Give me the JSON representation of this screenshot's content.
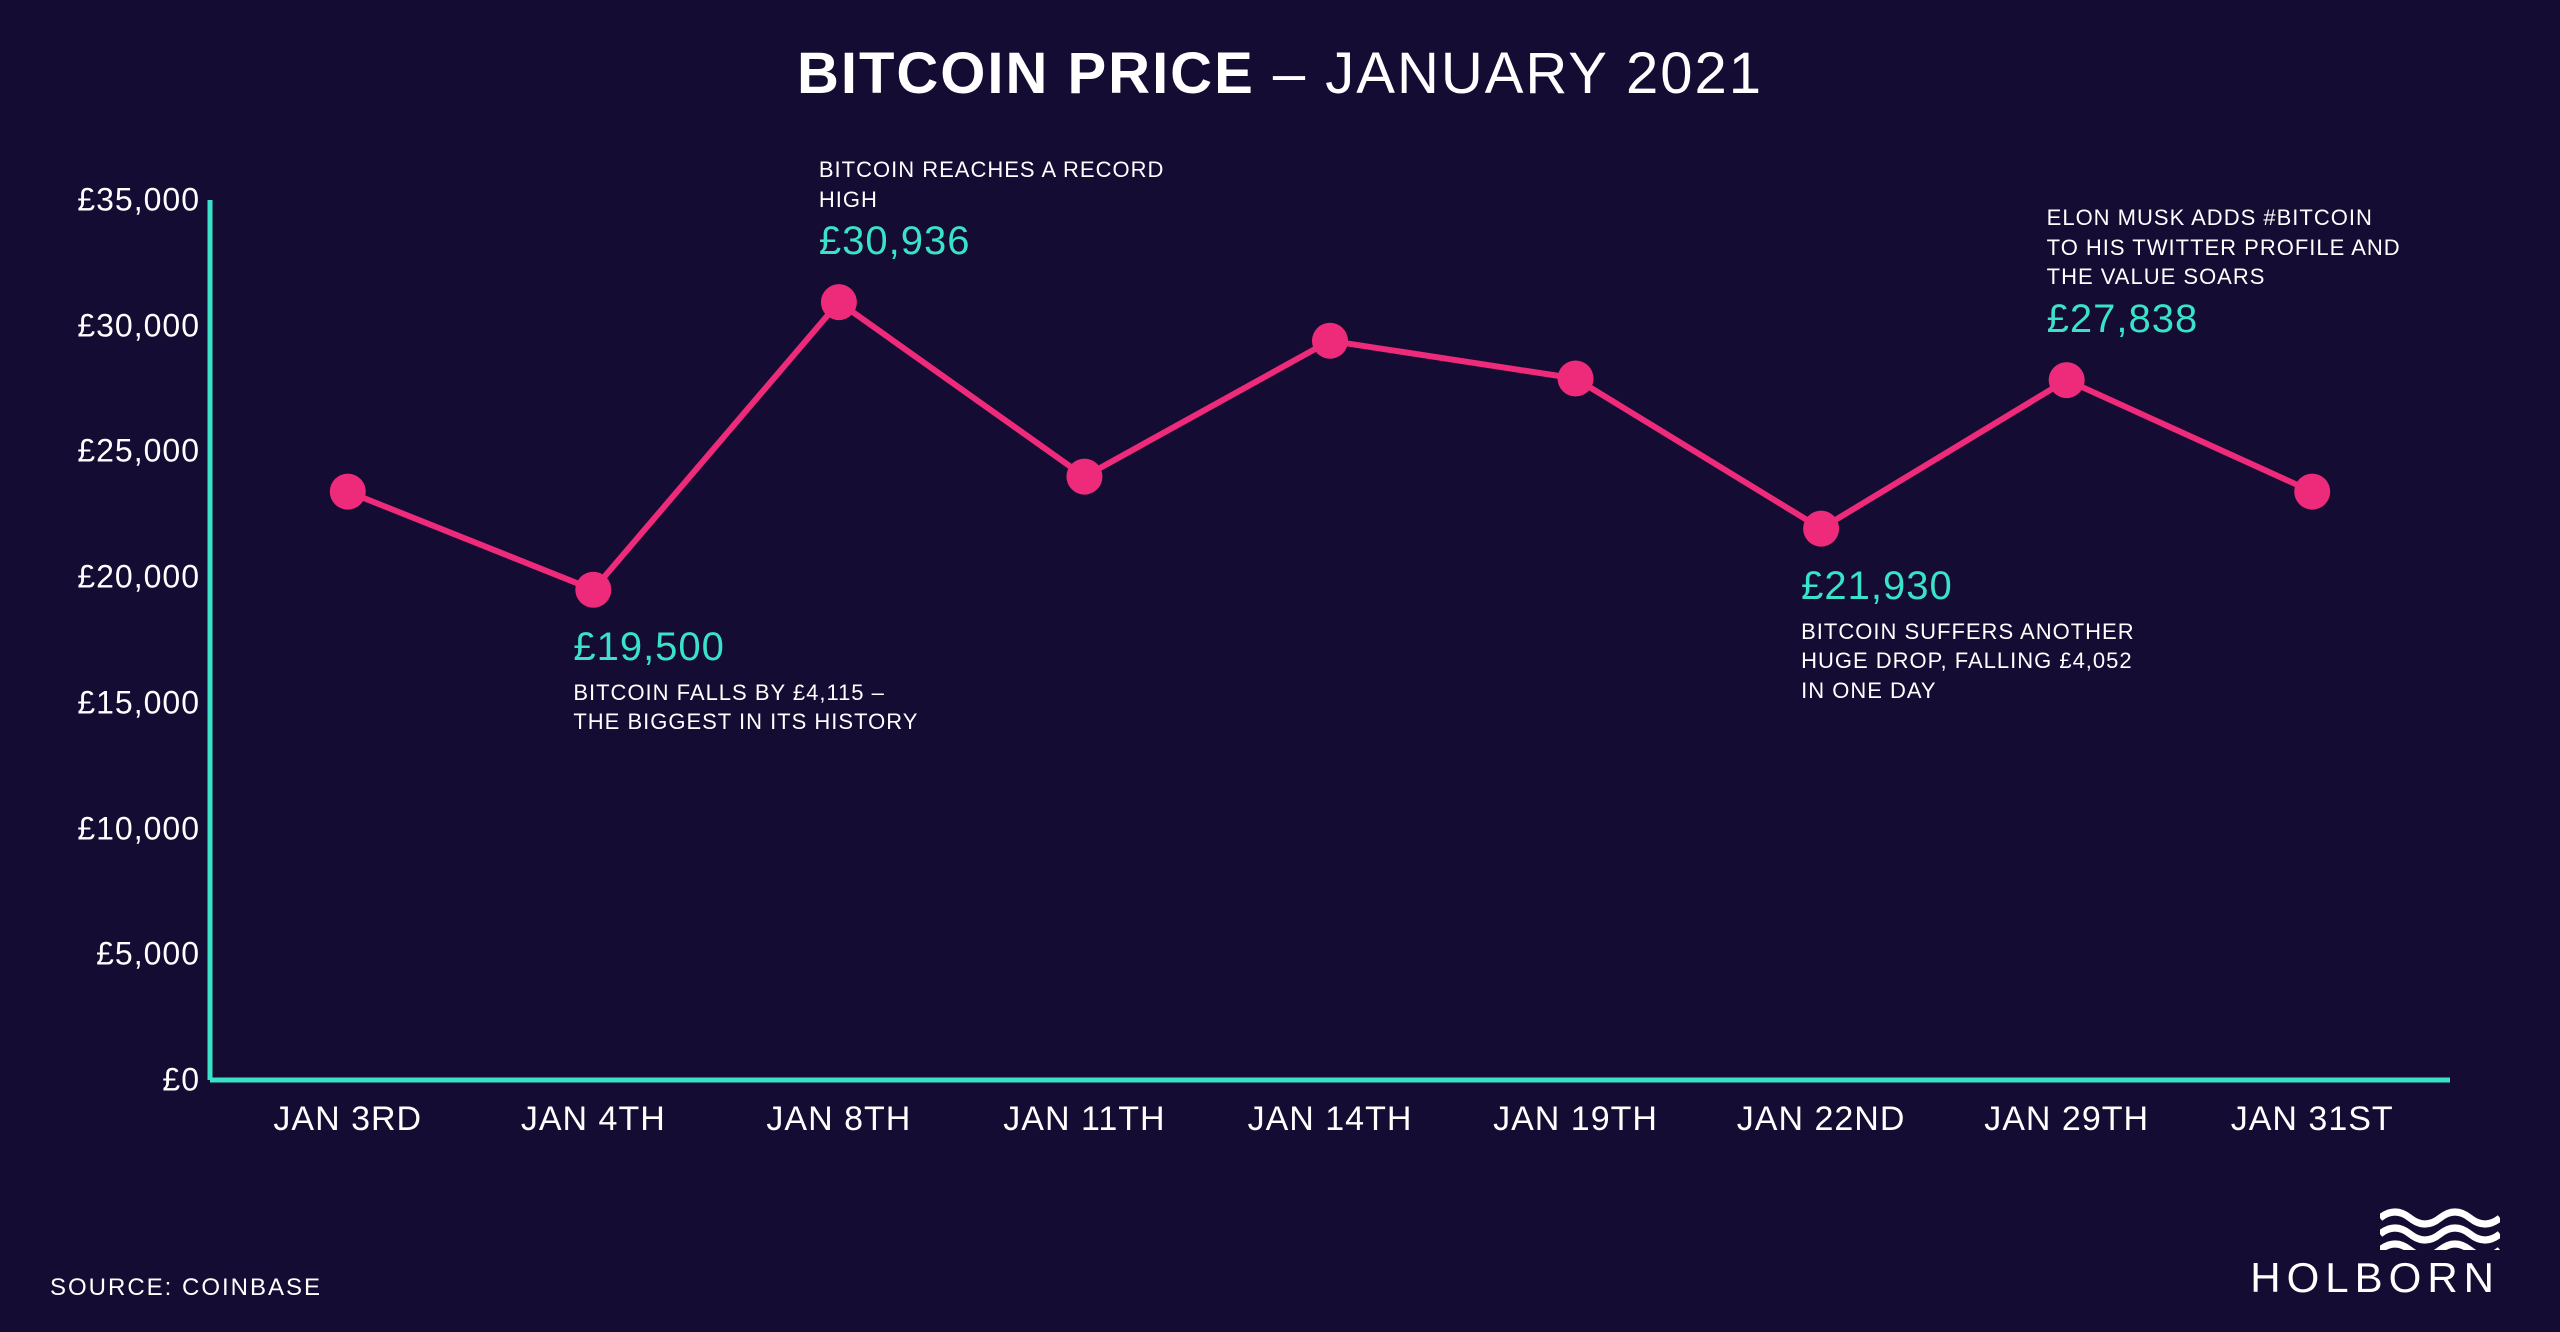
{
  "title": {
    "bold": "BITCOIN PRICE",
    "sep": " – ",
    "light": "JANUARY 2021"
  },
  "chart": {
    "type": "line",
    "background_color": "#140c32",
    "axis_color": "#39e2c9",
    "axis_width": 5,
    "line_color": "#ee2a7b",
    "line_width": 6,
    "marker_radius": 18,
    "marker_fill": "#ee2a7b",
    "value_color": "#39e2c9",
    "text_color": "#ffffff",
    "ylim": [
      0,
      35000
    ],
    "ytick_step": 5000,
    "y_ticks": [
      "£0",
      "£5,000",
      "£10,000",
      "£15,000",
      "£20,000",
      "£25,000",
      "£30,000",
      "£35,000"
    ],
    "x_labels": [
      "JAN 3RD",
      "JAN 4TH",
      "JAN 8TH",
      "JAN 11TH",
      "JAN 14TH",
      "JAN 19TH",
      "JAN 22ND",
      "JAN 29TH",
      "JAN 31ST"
    ],
    "values": [
      23400,
      19500,
      30936,
      24000,
      29400,
      27900,
      21930,
      27838,
      23400
    ],
    "annotations": [
      {
        "index": 1,
        "value_label": "£19,500",
        "caption": "BITCOIN FALLS BY £4,115 – THE BIGGEST IN ITS HISTORY",
        "position": "below"
      },
      {
        "index": 2,
        "value_label": "£30,936",
        "caption": "BITCOIN REACHES A RECORD HIGH",
        "position": "above"
      },
      {
        "index": 6,
        "value_label": "£21,930",
        "caption": "BITCOIN SUFFERS ANOTHER HUGE DROP, FALLING £4,052 IN ONE DAY",
        "position": "below"
      },
      {
        "index": 7,
        "value_label": "£27,838",
        "caption": "ELON MUSK ADDS #BITCOIN TO HIS TWITTER PROFILE AND THE VALUE SOARS",
        "position": "above"
      }
    ]
  },
  "source": "SOURCE: COINBASE",
  "brand": "HOLBORN"
}
